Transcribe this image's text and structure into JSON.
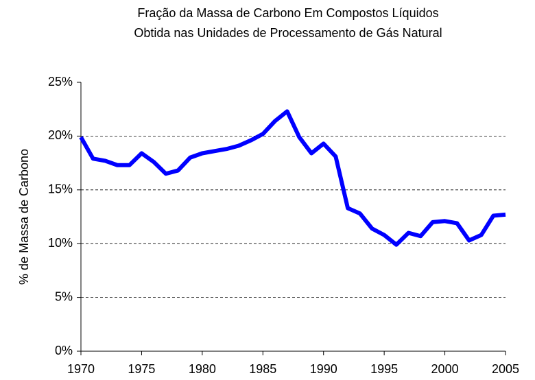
{
  "chart_data": {
    "type": "line",
    "title": [
      "Fração da Massa de Carbono Em Compostos Líquidos",
      "Obtida nas Unidades de Processamento de Gás Natural"
    ],
    "y_label": "% de Massa de Carbono",
    "x": [
      1970,
      1971,
      1972,
      1973,
      1974,
      1975,
      1976,
      1977,
      1978,
      1979,
      1980,
      1981,
      1982,
      1983,
      1984,
      1985,
      1986,
      1987,
      1988,
      1989,
      1990,
      1991,
      1992,
      1993,
      1994,
      1995,
      1996,
      1997,
      1998,
      1999,
      2000,
      2001,
      2002,
      2003,
      2004,
      2005
    ],
    "series": [
      {
        "color": "#0000ff",
        "values": [
          19.9,
          17.9,
          17.7,
          17.3,
          17.3,
          18.4,
          17.6,
          16.5,
          16.8,
          18.0,
          18.4,
          18.6,
          18.8,
          19.1,
          19.6,
          20.2,
          21.4,
          22.3,
          19.9,
          18.4,
          19.3,
          18.1,
          13.3,
          12.8,
          11.4,
          10.8,
          9.9,
          11.0,
          10.7,
          12.0,
          12.1,
          11.9,
          10.3,
          10.8,
          12.6,
          12.7
        ]
      }
    ],
    "xlim": [
      1970,
      2005
    ],
    "xticks": [
      1970,
      1975,
      1980,
      1985,
      1990,
      1995,
      2000,
      2005
    ],
    "ylim": [
      0,
      25
    ],
    "yticks": [
      {
        "value": 0,
        "label": "0%"
      },
      {
        "value": 5,
        "label": "5%"
      },
      {
        "value": 10,
        "label": "10%"
      },
      {
        "value": 15,
        "label": "15%"
      },
      {
        "value": 20,
        "label": "20%"
      },
      {
        "value": 25,
        "label": "25%"
      }
    ],
    "grid": true
  }
}
